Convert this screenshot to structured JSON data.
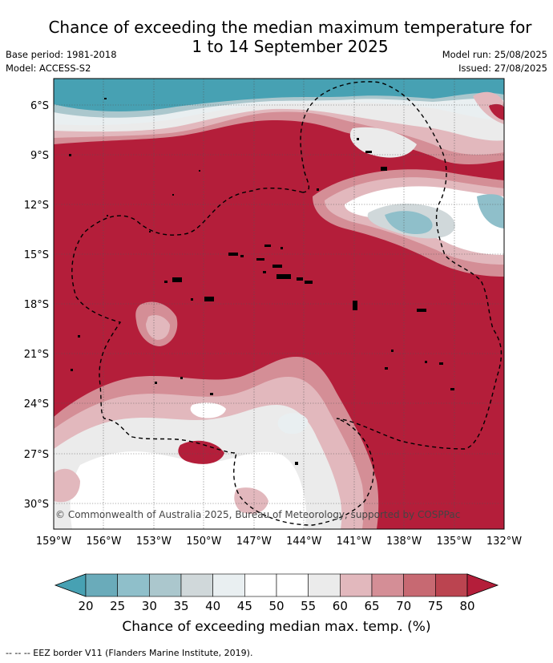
{
  "title_line1": "Chance of exceeding the median maximum temperature for",
  "title_line2": "1 to 14 September 2025",
  "base_period": "Base period: 1981-2018",
  "model": "Model: ACCESS-S2",
  "model_run": "Model run: 25/08/2025",
  "issued": "Issued: 27/08/2025",
  "lat_labels": [
    "6°S",
    "9°S",
    "12°S",
    "15°S",
    "18°S",
    "21°S",
    "24°S",
    "27°S",
    "30°S"
  ],
  "lon_labels": [
    "159°W",
    "156°W",
    "153°W",
    "150°W",
    "147°W",
    "144°W",
    "141°W",
    "138°W",
    "135°W",
    "132°W"
  ],
  "map_extent": {
    "lon_min": -159,
    "lon_max": -132,
    "lat_min": -31.5,
    "lat_max": -4.2
  },
  "copyright": "© Commonwealth of Australia 2025, Bureau of Meteorology, supported by COSPPac",
  "colorbar": {
    "ticks": [
      "20",
      "25",
      "30",
      "35",
      "40",
      "45",
      "50",
      "55",
      "60",
      "65",
      "70",
      "75",
      "80"
    ],
    "colors": [
      "#6aabba",
      "#8fbfca",
      "#abc7cd",
      "#d0d8da",
      "#e9eff1",
      "#ffffff",
      "#ffffff",
      "#ebebeb",
      "#e2b8bd",
      "#d48e96",
      "#c76972",
      "#bb4450"
    ],
    "under_color": "#47a1b3",
    "over_color": "#b41e3a",
    "label": "Chance of exceeding median max. temp. (%)"
  },
  "footer": "--  --  -- EEZ border V11 (Flanders Marine Institute, 2019)."
}
